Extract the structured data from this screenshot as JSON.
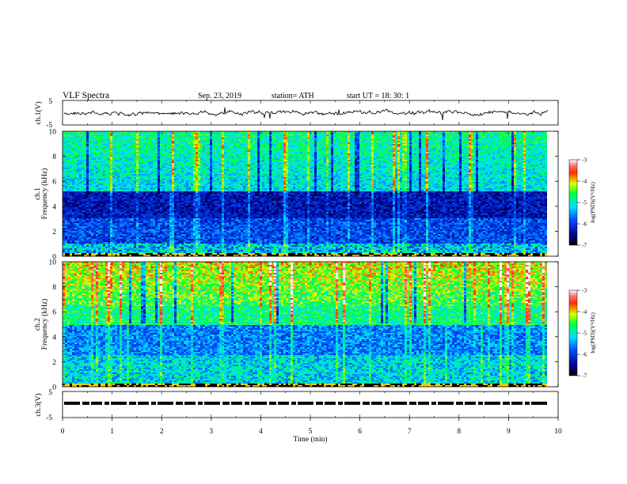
{
  "header": {
    "title": "VLF  Spectra",
    "date": "Sep. 23, 2019",
    "station": "station= ATH",
    "start": "start  UT  =    18: 30: 1"
  },
  "chart_data": [
    {
      "type": "line",
      "name": "ch1-waveform",
      "ylabel": "ch.1(V)",
      "ylim": [
        -5,
        5
      ],
      "yticks": [
        "5",
        "-5"
      ],
      "xlim": [
        0,
        10
      ]
    },
    {
      "type": "heatmap",
      "name": "ch1-spectrogram",
      "ylabel": "Frequency (kHz)",
      "channel_label": "ch.1",
      "ylim": [
        0,
        10
      ],
      "yticks": [
        "0",
        "2",
        "4",
        "6",
        "8",
        "10"
      ],
      "xlim": [
        0,
        9.8
      ],
      "colorbar": {
        "label": "log(PSD)(V²/Hz)",
        "range": [
          -7,
          -3
        ],
        "ticks": [
          "-3",
          "-4",
          "-5",
          "-6",
          "-7"
        ]
      },
      "features": {
        "dark_band_khz": [
          3.0,
          5.2
        ],
        "background_log_psd": -5.2
      }
    },
    {
      "type": "heatmap",
      "name": "ch2-spectrogram",
      "ylabel": "Frequency (kHz)",
      "channel_label": "ch.2",
      "ylim": [
        0,
        10
      ],
      "yticks": [
        "0",
        "2",
        "4",
        "6",
        "8",
        "10"
      ],
      "xlim": [
        0,
        9.8
      ],
      "colorbar": {
        "label": "log(PSD)(V²/Hz)",
        "range": [
          -7,
          -3
        ],
        "ticks": [
          "-3",
          "-4",
          "-5",
          "-6",
          "-7"
        ]
      },
      "features": {
        "high_power_khz": [
          6.5,
          10
        ],
        "background_log_psd": -4.8
      }
    },
    {
      "type": "line",
      "name": "ch3-waveform",
      "ylabel": "ch.3(V)",
      "ylim": [
        -5,
        5
      ],
      "yticks": [
        "5",
        "-5"
      ],
      "xlim": [
        0,
        10
      ],
      "level_v": 0.5
    }
  ],
  "xaxis": {
    "label": "Time  (min)",
    "range": [
      0,
      10
    ],
    "ticks": [
      "0",
      "1",
      "2",
      "3",
      "4",
      "5",
      "6",
      "7",
      "8",
      "9",
      "10"
    ]
  }
}
